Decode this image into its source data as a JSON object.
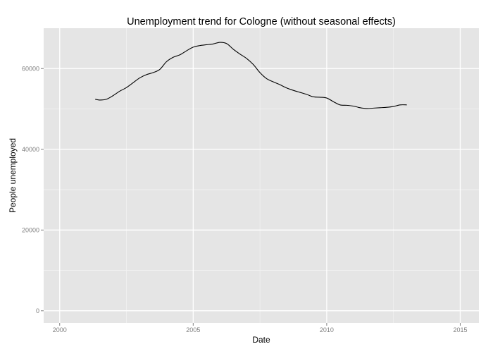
{
  "chart_data": {
    "type": "line",
    "title": "Unemployment trend for Cologne (without seasonal effects)",
    "xlabel": "Date",
    "ylabel": "People unemployed",
    "xlim": [
      1999.4,
      2015.7
    ],
    "ylim": [
      -3000,
      70000
    ],
    "x_ticks": [
      2000,
      2005,
      2010,
      2015
    ],
    "x_tick_labels": [
      "2000",
      "2005",
      "2010",
      "2015"
    ],
    "y_ticks": [
      0,
      20000,
      40000,
      60000
    ],
    "y_tick_labels": [
      "0",
      "20000",
      "40000",
      "60000"
    ],
    "grid": true,
    "legend": "none",
    "colors": {
      "panel_background": "#e5e5e5",
      "grid_major": "#ffffff",
      "grid_minor": "#f2f2f2",
      "line": "#000000"
    },
    "series": [
      {
        "x": [
          2001.33,
          2001.5,
          2001.75,
          2002.0,
          2002.25,
          2002.5,
          2002.75,
          2003.0,
          2003.25,
          2003.5,
          2003.75,
          2004.0,
          2004.25,
          2004.5,
          2004.75,
          2005.0,
          2005.25,
          2005.5,
          2005.75,
          2006.0,
          2006.25,
          2006.5,
          2006.75,
          2007.0,
          2007.25,
          2007.5,
          2007.75,
          2008.0,
          2008.25,
          2008.5,
          2008.75,
          2009.0,
          2009.25,
          2009.5,
          2009.75,
          2010.0,
          2010.25,
          2010.5,
          2010.75,
          2011.0,
          2011.25,
          2011.5,
          2011.75,
          2012.0,
          2012.25,
          2012.5,
          2012.75,
          2013.0
        ],
        "values": [
          52400,
          52200,
          52400,
          53300,
          54400,
          55300,
          56500,
          57700,
          58500,
          59000,
          59800,
          61700,
          62800,
          63400,
          64400,
          65300,
          65700,
          65900,
          66100,
          66500,
          66200,
          64800,
          63600,
          62500,
          61000,
          59000,
          57500,
          56700,
          56000,
          55200,
          54600,
          54100,
          53600,
          53000,
          52900,
          52700,
          51800,
          51000,
          50900,
          50700,
          50300,
          50100,
          50200,
          50300,
          50400,
          50600,
          51000,
          51000
        ]
      }
    ]
  }
}
